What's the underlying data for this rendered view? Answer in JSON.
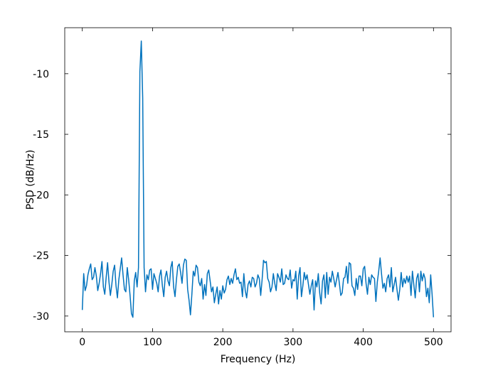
{
  "chart_data": {
    "type": "line",
    "title": "",
    "xlabel": "Frequency (Hz)",
    "ylabel": "PSD (dB/Hz)",
    "xlim": [
      -25,
      525
    ],
    "ylim": [
      -31.3,
      -6.2
    ],
    "x_ticks": [
      0,
      100,
      200,
      300,
      400,
      500
    ],
    "y_ticks": [
      -30,
      -25,
      -20,
      -15,
      -10
    ],
    "grid": false,
    "legend": "none",
    "colors": {
      "line": "#0072BD",
      "axes": "#000000",
      "background": "#ffffff"
    },
    "series": [
      {
        "x_start": 0,
        "x_step": 2,
        "y": [
          -29.5,
          -26.5,
          -27.9,
          -27.5,
          -26.6,
          -26.1,
          -25.7,
          -27.0,
          -26.8,
          -26.0,
          -26.7,
          -27.9,
          -27.3,
          -26.5,
          -25.5,
          -27.6,
          -28.2,
          -26.8,
          -25.6,
          -27.2,
          -28.3,
          -27.4,
          -26.3,
          -25.8,
          -27.5,
          -28.5,
          -27.0,
          -26.1,
          -25.2,
          -26.6,
          -27.8,
          -28.0,
          -26.0,
          -27.0,
          -28.3,
          -29.8,
          -30.1,
          -27.1,
          -26.4,
          -27.6,
          -26.0,
          -9.8,
          -7.3,
          -12.0,
          -26.0,
          -28.0,
          -26.6,
          -27.0,
          -26.2,
          -26.1,
          -27.8,
          -26.5,
          -26.9,
          -27.3,
          -28.0,
          -26.7,
          -26.2,
          -27.5,
          -28.4,
          -26.8,
          -26.3,
          -27.1,
          -27.5,
          -26.0,
          -25.5,
          -27.6,
          -28.4,
          -27.0,
          -25.9,
          -25.7,
          -26.4,
          -27.3,
          -25.8,
          -25.3,
          -25.4,
          -27.8,
          -28.7,
          -29.9,
          -28.2,
          -26.3,
          -26.7,
          -25.8,
          -26.0,
          -27.2,
          -27.5,
          -26.9,
          -28.6,
          -27.4,
          -28.3,
          -26.5,
          -26.2,
          -27.1,
          -28.0,
          -27.6,
          -28.9,
          -28.2,
          -27.6,
          -29.0,
          -27.9,
          -28.6,
          -27.5,
          -28.1,
          -27.8,
          -27.0,
          -26.7,
          -27.4,
          -26.9,
          -27.3,
          -26.6,
          -26.1,
          -27.0,
          -26.8,
          -27.3,
          -27.2,
          -28.4,
          -26.5,
          -27.9,
          -28.5,
          -27.4,
          -27.1,
          -27.6,
          -26.8,
          -26.9,
          -27.6,
          -27.3,
          -26.6,
          -26.9,
          -28.3,
          -27.0,
          -25.4,
          -25.6,
          -25.5,
          -26.9,
          -27.2,
          -28.0,
          -27.6,
          -26.5,
          -27.3,
          -27.9,
          -26.5,
          -26.8,
          -27.2,
          -26.1,
          -27.4,
          -27.3,
          -26.6,
          -26.9,
          -27.0,
          -26.2,
          -27.7,
          -27.0,
          -27.1,
          -26.3,
          -28.6,
          -26.7,
          -26.0,
          -28.4,
          -27.5,
          -26.4,
          -27.0,
          -26.6,
          -27.4,
          -28.2,
          -27.5,
          -27.0,
          -29.5,
          -27.1,
          -27.6,
          -26.5,
          -28.1,
          -29.0,
          -27.1,
          -26.6,
          -28.5,
          -26.4,
          -28.2,
          -26.8,
          -27.2,
          -26.3,
          -26.9,
          -27.6,
          -27.0,
          -26.4,
          -27.3,
          -28.3,
          -28.1,
          -26.9,
          -26.8,
          -25.9,
          -27.3,
          -25.6,
          -25.7,
          -27.5,
          -27.7,
          -28.3,
          -26.9,
          -27.8,
          -26.7,
          -26.7,
          -27.5,
          -26.1,
          -25.9,
          -27.3,
          -28.2,
          -26.8,
          -27.4,
          -26.6,
          -26.8,
          -26.9,
          -28.8,
          -27.2,
          -26.3,
          -25.2,
          -26.5,
          -27.7,
          -27.3,
          -28.0,
          -26.9,
          -26.6,
          -27.6,
          -26.0,
          -28.0,
          -27.4,
          -26.8,
          -27.8,
          -28.7,
          -27.8,
          -26.4,
          -27.6,
          -26.9,
          -27.3,
          -26.7,
          -27.2,
          -26.7,
          -28.3,
          -26.3,
          -27.4,
          -28.5,
          -26.9,
          -26.5,
          -28.0,
          -26.3,
          -27.1,
          -26.5,
          -26.9,
          -28.4,
          -27.7,
          -28.9,
          -26.6,
          -28.2,
          -30.1
        ]
      }
    ]
  }
}
